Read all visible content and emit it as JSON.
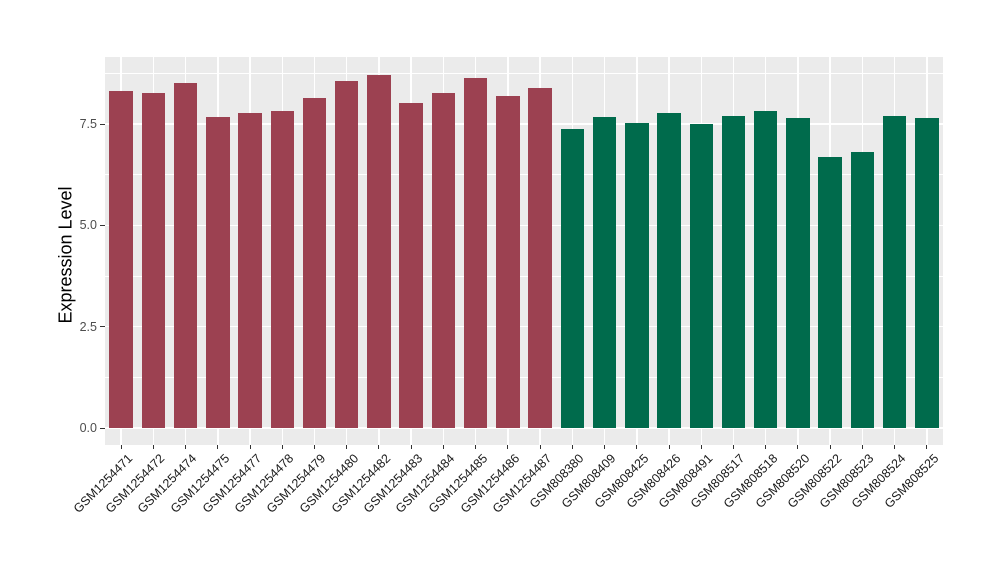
{
  "chart_data": {
    "type": "bar",
    "title": "",
    "xlabel": "",
    "ylabel": "Expression Level",
    "ylim": [
      0,
      9.2
    ],
    "ytick_values": [
      0,
      2.5,
      5,
      7.5
    ],
    "ytick_labels": [
      "0.0",
      "2.5",
      "5.0",
      "7.5"
    ],
    "minor_gridline_values": [
      1.25,
      3.75,
      6.25,
      8.75
    ],
    "legend_position": "none",
    "grid": "white major and minor gridlines on grey panel",
    "panel_background": "#EBEBEB",
    "gridline_color": "#FFFFFF",
    "axis_tick_color": "#333333",
    "groups": [
      {
        "name": "maroon-group",
        "color": "#9C4151"
      },
      {
        "name": "green-group",
        "color": "#006B4C"
      }
    ],
    "bars": [
      {
        "label": "GSM1254471",
        "value": 8.32,
        "group": 0
      },
      {
        "label": "GSM1254472",
        "value": 8.27,
        "group": 0
      },
      {
        "label": "GSM1254474",
        "value": 8.5,
        "group": 0
      },
      {
        "label": "GSM1254475",
        "value": 7.68,
        "group": 0
      },
      {
        "label": "GSM1254477",
        "value": 7.77,
        "group": 0
      },
      {
        "label": "GSM1254478",
        "value": 7.83,
        "group": 0
      },
      {
        "label": "GSM1254479",
        "value": 8.13,
        "group": 0
      },
      {
        "label": "GSM1254480",
        "value": 8.57,
        "group": 0
      },
      {
        "label": "GSM1254482",
        "value": 8.72,
        "group": 0
      },
      {
        "label": "GSM1254483",
        "value": 8.03,
        "group": 0
      },
      {
        "label": "GSM1254484",
        "value": 8.26,
        "group": 0
      },
      {
        "label": "GSM1254485",
        "value": 8.63,
        "group": 0
      },
      {
        "label": "GSM1254486",
        "value": 8.2,
        "group": 0
      },
      {
        "label": "GSM1254487",
        "value": 8.38,
        "group": 0
      },
      {
        "label": "GSM808380",
        "value": 7.37,
        "group": 1
      },
      {
        "label": "GSM808409",
        "value": 7.68,
        "group": 1
      },
      {
        "label": "GSM808425",
        "value": 7.53,
        "group": 1
      },
      {
        "label": "GSM808426",
        "value": 7.78,
        "group": 1
      },
      {
        "label": "GSM808491",
        "value": 7.51,
        "group": 1
      },
      {
        "label": "GSM808517",
        "value": 7.7,
        "group": 1
      },
      {
        "label": "GSM808518",
        "value": 7.82,
        "group": 1
      },
      {
        "label": "GSM808520",
        "value": 7.66,
        "group": 1
      },
      {
        "label": "GSM808522",
        "value": 6.69,
        "group": 1
      },
      {
        "label": "GSM808523",
        "value": 6.81,
        "group": 1
      },
      {
        "label": "GSM808524",
        "value": 7.7,
        "group": 1
      },
      {
        "label": "GSM808525",
        "value": 7.65,
        "group": 1
      }
    ]
  }
}
